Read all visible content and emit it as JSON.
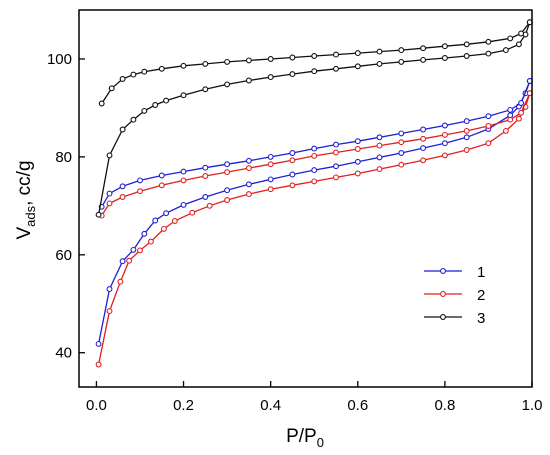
{
  "chart_data": {
    "type": "line",
    "xlabel": {
      "main": "P/P",
      "sub": "0"
    },
    "ylabel": {
      "main": "V",
      "sub": "ads",
      "rest": ", cc/g"
    },
    "xlim": [
      -0.04,
      1.0
    ],
    "ylim": [
      33,
      110
    ],
    "xticks": [
      {
        "value": 0.0,
        "label": "0.0"
      },
      {
        "value": 0.2,
        "label": "0.2"
      },
      {
        "value": 0.4,
        "label": "0.4"
      },
      {
        "value": 0.6,
        "label": "0.6"
      },
      {
        "value": 0.8,
        "label": "0.8"
      },
      {
        "value": 1.0,
        "label": "1.0"
      }
    ],
    "yticks": [
      {
        "value": 40,
        "label": "40"
      },
      {
        "value": 60,
        "label": "60"
      },
      {
        "value": 80,
        "label": "80"
      },
      {
        "value": 100,
        "label": "100"
      }
    ],
    "grid": false,
    "legend_position": "right",
    "series": [
      {
        "name": "1",
        "color": "#1f1fd6",
        "adsorption": [
          [
            0.005,
            41.8
          ],
          [
            0.03,
            53.0
          ],
          [
            0.06,
            58.7
          ],
          [
            0.085,
            61.0
          ],
          [
            0.11,
            64.3
          ],
          [
            0.135,
            67.0
          ],
          [
            0.16,
            68.5
          ],
          [
            0.2,
            70.2
          ],
          [
            0.25,
            71.8
          ],
          [
            0.3,
            73.2
          ],
          [
            0.35,
            74.4
          ],
          [
            0.4,
            75.4
          ],
          [
            0.45,
            76.4
          ],
          [
            0.5,
            77.3
          ],
          [
            0.55,
            78.1
          ],
          [
            0.6,
            79.0
          ],
          [
            0.65,
            79.9
          ],
          [
            0.7,
            80.8
          ],
          [
            0.75,
            81.8
          ],
          [
            0.8,
            82.8
          ],
          [
            0.85,
            84.0
          ],
          [
            0.9,
            85.7
          ],
          [
            0.95,
            88.5
          ],
          [
            0.97,
            90.3
          ],
          [
            0.985,
            93.0
          ],
          [
            0.995,
            95.5
          ]
        ],
        "desorption": [
          [
            0.995,
            95.5
          ],
          [
            0.975,
            91.0
          ],
          [
            0.95,
            89.6
          ],
          [
            0.9,
            88.3
          ],
          [
            0.85,
            87.3
          ],
          [
            0.8,
            86.4
          ],
          [
            0.75,
            85.6
          ],
          [
            0.7,
            84.8
          ],
          [
            0.65,
            84.0
          ],
          [
            0.6,
            83.2
          ],
          [
            0.55,
            82.5
          ],
          [
            0.5,
            81.7
          ],
          [
            0.45,
            80.8
          ],
          [
            0.4,
            80.0
          ],
          [
            0.35,
            79.2
          ],
          [
            0.3,
            78.5
          ],
          [
            0.25,
            77.8
          ],
          [
            0.2,
            77.0
          ],
          [
            0.15,
            76.2
          ],
          [
            0.1,
            75.2
          ],
          [
            0.06,
            74.0
          ],
          [
            0.03,
            72.5
          ],
          [
            0.012,
            69.8
          ]
        ]
      },
      {
        "name": "2",
        "color": "#e02020",
        "adsorption": [
          [
            0.005,
            37.6
          ],
          [
            0.03,
            48.5
          ],
          [
            0.055,
            54.5
          ],
          [
            0.075,
            58.8
          ],
          [
            0.1,
            60.9
          ],
          [
            0.125,
            62.7
          ],
          [
            0.155,
            65.3
          ],
          [
            0.18,
            66.9
          ],
          [
            0.22,
            68.6
          ],
          [
            0.26,
            70.0
          ],
          [
            0.3,
            71.2
          ],
          [
            0.35,
            72.4
          ],
          [
            0.4,
            73.4
          ],
          [
            0.45,
            74.2
          ],
          [
            0.5,
            75.0
          ],
          [
            0.55,
            75.8
          ],
          [
            0.6,
            76.6
          ],
          [
            0.65,
            77.5
          ],
          [
            0.7,
            78.4
          ],
          [
            0.75,
            79.3
          ],
          [
            0.8,
            80.3
          ],
          [
            0.85,
            81.4
          ],
          [
            0.9,
            82.8
          ],
          [
            0.94,
            85.3
          ],
          [
            0.97,
            87.8
          ],
          [
            0.985,
            90.2
          ],
          [
            0.995,
            93.0
          ]
        ],
        "desorption": [
          [
            0.995,
            93.0
          ],
          [
            0.975,
            89.0
          ],
          [
            0.95,
            87.6
          ],
          [
            0.9,
            86.3
          ],
          [
            0.85,
            85.3
          ],
          [
            0.8,
            84.5
          ],
          [
            0.75,
            83.7
          ],
          [
            0.7,
            83.0
          ],
          [
            0.65,
            82.3
          ],
          [
            0.6,
            81.6
          ],
          [
            0.55,
            80.9
          ],
          [
            0.5,
            80.2
          ],
          [
            0.45,
            79.3
          ],
          [
            0.4,
            78.5
          ],
          [
            0.35,
            77.7
          ],
          [
            0.3,
            76.9
          ],
          [
            0.25,
            76.1
          ],
          [
            0.2,
            75.2
          ],
          [
            0.15,
            74.2
          ],
          [
            0.1,
            73.0
          ],
          [
            0.06,
            71.8
          ],
          [
            0.03,
            70.5
          ],
          [
            0.012,
            68.0
          ]
        ]
      },
      {
        "name": "3",
        "color": "#111111",
        "adsorption": [
          [
            0.005,
            68.2
          ],
          [
            0.03,
            80.3
          ],
          [
            0.06,
            85.6
          ],
          [
            0.085,
            87.6
          ],
          [
            0.11,
            89.4
          ],
          [
            0.135,
            90.6
          ],
          [
            0.16,
            91.5
          ],
          [
            0.2,
            92.6
          ],
          [
            0.25,
            93.8
          ],
          [
            0.3,
            94.8
          ],
          [
            0.35,
            95.6
          ],
          [
            0.4,
            96.3
          ],
          [
            0.45,
            96.9
          ],
          [
            0.5,
            97.5
          ],
          [
            0.55,
            98.0
          ],
          [
            0.6,
            98.5
          ],
          [
            0.65,
            99.0
          ],
          [
            0.7,
            99.4
          ],
          [
            0.75,
            99.8
          ],
          [
            0.8,
            100.2
          ],
          [
            0.85,
            100.6
          ],
          [
            0.9,
            101.1
          ],
          [
            0.94,
            101.8
          ],
          [
            0.97,
            103.0
          ],
          [
            0.985,
            105.0
          ],
          [
            0.995,
            107.5
          ]
        ],
        "desorption": [
          [
            0.995,
            107.5
          ],
          [
            0.975,
            105.2
          ],
          [
            0.95,
            104.2
          ],
          [
            0.9,
            103.5
          ],
          [
            0.85,
            103.0
          ],
          [
            0.8,
            102.6
          ],
          [
            0.75,
            102.2
          ],
          [
            0.7,
            101.8
          ],
          [
            0.65,
            101.5
          ],
          [
            0.6,
            101.2
          ],
          [
            0.55,
            100.9
          ],
          [
            0.5,
            100.6
          ],
          [
            0.45,
            100.3
          ],
          [
            0.4,
            100.0
          ],
          [
            0.35,
            99.7
          ],
          [
            0.3,
            99.4
          ],
          [
            0.25,
            99.0
          ],
          [
            0.2,
            98.6
          ],
          [
            0.15,
            98.0
          ],
          [
            0.11,
            97.4
          ],
          [
            0.085,
            96.8
          ],
          [
            0.06,
            95.9
          ],
          [
            0.035,
            94.0
          ],
          [
            0.012,
            90.9
          ]
        ]
      }
    ]
  }
}
